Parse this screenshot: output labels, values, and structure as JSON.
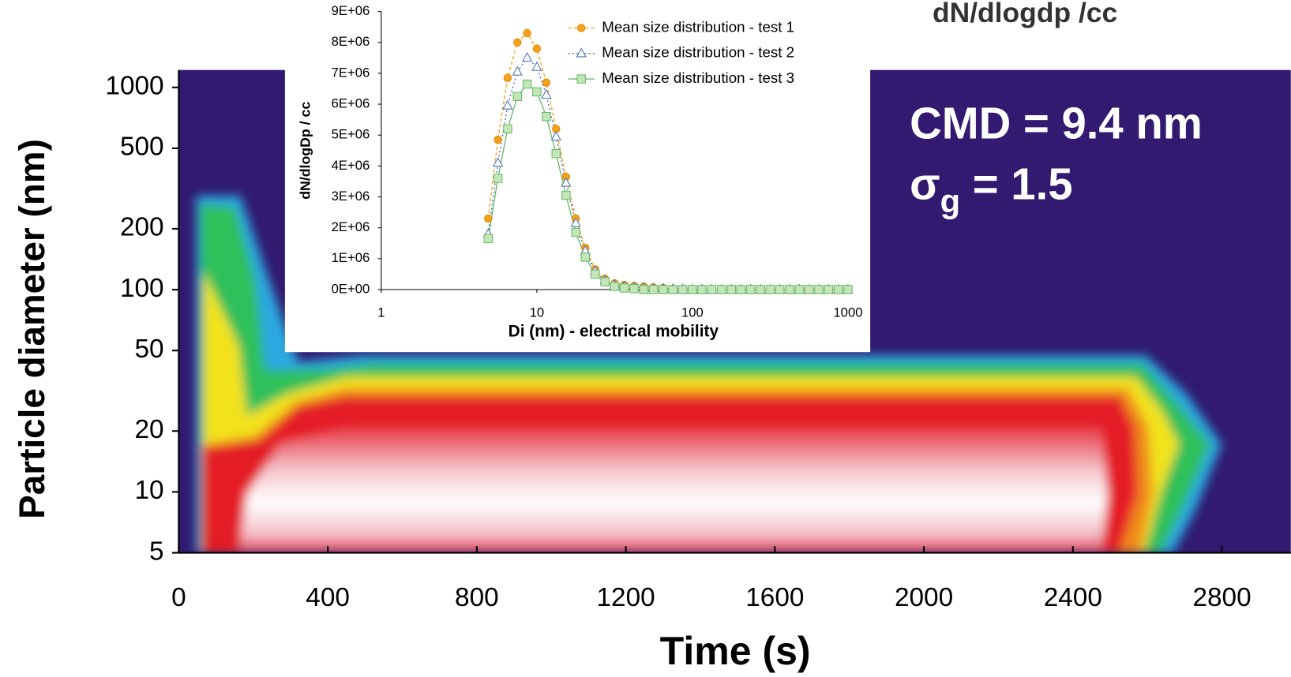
{
  "chart_data": [
    {
      "type": "contour",
      "xlabel": "Time (s)",
      "ylabel": "Particle diameter (nm)",
      "colorbar_label": "dN/dlogdp /cc",
      "xlim": [
        0,
        2985
      ],
      "xticks": [
        0,
        400,
        800,
        1200,
        1600,
        2000,
        2400,
        2800
      ],
      "ylim": [
        5,
        1220
      ],
      "yticks": [
        5,
        10,
        20,
        50,
        100,
        200,
        500,
        1000
      ],
      "yscale": "log",
      "annotations": [
        {
          "text": "CMD = 9.4 nm"
        },
        {
          "text": "σ",
          "subscript": "g",
          "rest": " = 1.5"
        }
      ]
    },
    {
      "type": "line",
      "xlabel": "Di (nm) - electrical mobility",
      "ylabel": "dN/dlogDp / cc",
      "xscale": "log",
      "xlim": [
        1,
        1000
      ],
      "xticks": [
        1,
        10,
        100,
        1000
      ],
      "ylim": [
        0,
        9000000
      ],
      "yticks": [
        {
          "value": 0,
          "label": "0E+00"
        },
        {
          "value": 1000000,
          "label": "1E+06"
        },
        {
          "value": 2000000,
          "label": "2E+06"
        },
        {
          "value": 3000000,
          "label": "3E+06"
        },
        {
          "value": 4000000,
          "label": "4E+06"
        },
        {
          "value": 5000000,
          "label": "5E+06"
        },
        {
          "value": 6000000,
          "label": "6E+06"
        },
        {
          "value": 7000000,
          "label": "7E+06"
        },
        {
          "value": 8000000,
          "label": "8E+06"
        },
        {
          "value": 9000000,
          "label": "9E+06"
        }
      ],
      "x": [
        4.87,
        5.62,
        6.49,
        7.5,
        8.66,
        10,
        11.5,
        13.3,
        15.4,
        17.8,
        20.5,
        23.7,
        27.4,
        31.6,
        36.5,
        42.2,
        48.7,
        56.2,
        64.9,
        75,
        86.6,
        100,
        115,
        133,
        154,
        178,
        205,
        237,
        274,
        316,
        365,
        422,
        487,
        562,
        649,
        750,
        866,
        1000
      ],
      "series": [
        {
          "name": "Mean size distribution - test 1",
          "color": "#f5a31f",
          "marker": "circle",
          "dash": "4 3",
          "values": [
            2300000,
            4850000,
            6850000,
            8000000,
            8300000,
            7800000,
            6700000,
            5200000,
            3650000,
            2300000,
            1350000,
            650000,
            350000,
            200000,
            150000,
            120000,
            100000,
            70000,
            50000,
            30000,
            20000,
            10000,
            0,
            0,
            0,
            0,
            0,
            0,
            0,
            0,
            0,
            0,
            0,
            0,
            0,
            0,
            0,
            0
          ]
        },
        {
          "name": "Mean size distribution - test 2",
          "color": "#4a6fb5",
          "marker": "triangle",
          "dash": "2 3",
          "values": [
            1800000,
            4100000,
            5950000,
            7050000,
            7500000,
            7200000,
            6300000,
            4950000,
            3450000,
            2150000,
            1250000,
            600000,
            300000,
            150000,
            100000,
            80000,
            60000,
            40000,
            30000,
            20000,
            10000,
            0,
            0,
            0,
            0,
            0,
            0,
            0,
            0,
            0,
            0,
            0,
            0,
            0,
            0,
            0,
            0,
            0
          ]
        },
        {
          "name": "Mean size distribution - test 3",
          "color": "#6cb86a",
          "marker": "square",
          "dash": "none",
          "values": [
            1650000,
            3600000,
            5200000,
            6250000,
            6650000,
            6400000,
            5600000,
            4400000,
            3050000,
            1850000,
            1050000,
            500000,
            250000,
            100000,
            50000,
            30000,
            0,
            0,
            0,
            0,
            0,
            0,
            0,
            0,
            0,
            0,
            0,
            0,
            0,
            0,
            0,
            0,
            0,
            0,
            0,
            0,
            0,
            0
          ]
        }
      ]
    }
  ]
}
